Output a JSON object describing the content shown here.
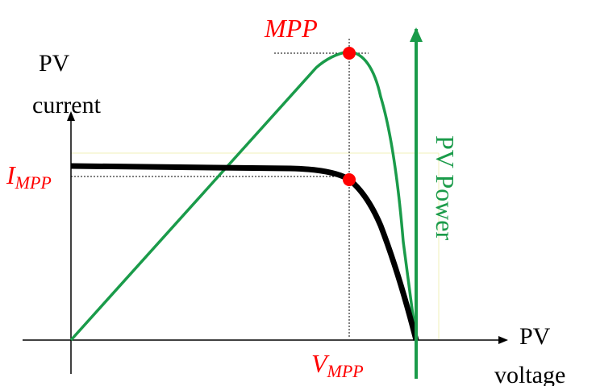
{
  "labels": {
    "y_axis_line1": "PV",
    "y_axis_line2": "current",
    "x_axis_line1": "PV",
    "x_axis_line2": "voltage",
    "mpp": "MPP",
    "i_mpp_main": "I",
    "i_mpp_sub": "MPP",
    "v_mpp_main": "V",
    "v_mpp_sub": "MPP",
    "pv_power": "PV Power"
  },
  "colors": {
    "iv_curve": "#000000",
    "power_curve": "#1a9b4a",
    "marker": "#ff0000",
    "axis": "#000000",
    "guide": "#000000",
    "faint_guide": "#f2f0b8"
  }
}
